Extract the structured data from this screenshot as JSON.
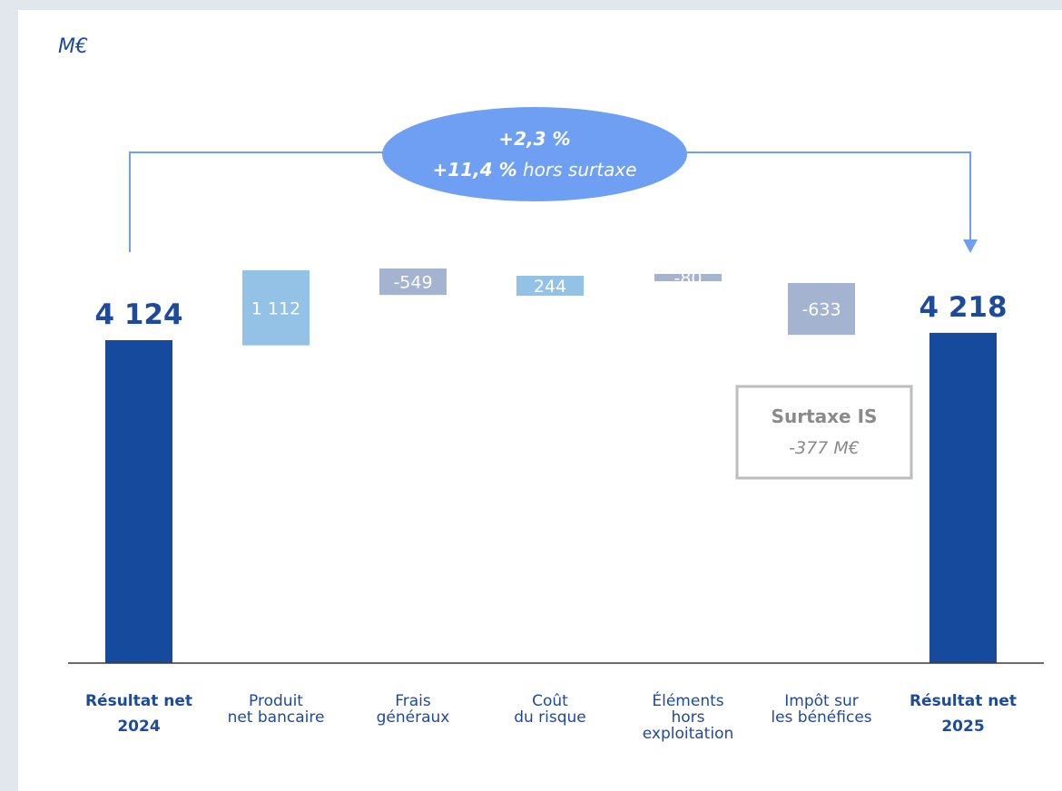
{
  "chart_data": {
    "type": "bar",
    "subtype": "waterfall",
    "unit": "M€",
    "categories": [
      [
        "Résultat net",
        "2024"
      ],
      [
        "Produit",
        "net bancaire"
      ],
      [
        "Frais",
        "généraux"
      ],
      [
        "Coût",
        "du risque"
      ],
      [
        "Éléments",
        "hors",
        "exploitation"
      ],
      [
        "Impôt sur",
        "les bénéfices"
      ],
      [
        "Résultat net",
        "2025"
      ]
    ],
    "bars": [
      {
        "kind": "total",
        "value": 4124,
        "label": "4 124",
        "color": "#164a9c"
      },
      {
        "kind": "delta",
        "value": 1112,
        "label": "1 112",
        "color": "#94c2e6"
      },
      {
        "kind": "delta",
        "value": -549,
        "label": "-549",
        "color": "#a4b4d0"
      },
      {
        "kind": "delta",
        "value": 244,
        "label": "244",
        "color": "#94c2e6"
      },
      {
        "kind": "delta",
        "value": -80,
        "label": "-80",
        "color": "#a4b4d0"
      },
      {
        "kind": "delta",
        "value": -633,
        "label": "-633",
        "color": "#a4b4d0"
      },
      {
        "kind": "total",
        "value": 4218,
        "label": "4 218",
        "color": "#164a9c"
      }
    ],
    "growth_bubble": {
      "line1_bold": "+2,3 %",
      "line2_bold": "+11,4 %",
      "line2_italic": " hors surtaxe",
      "color": "#6e9ff2"
    },
    "annotation": {
      "title": "Surtaxe IS",
      "value": "-377 M€"
    },
    "colors": {
      "total": "#164a9c",
      "increase": "#94c2e6",
      "decrease": "#a4b4d0",
      "text": "#1e4a9b",
      "arrow": "#6e9ff2",
      "annotation": "#bdbdbd"
    }
  }
}
